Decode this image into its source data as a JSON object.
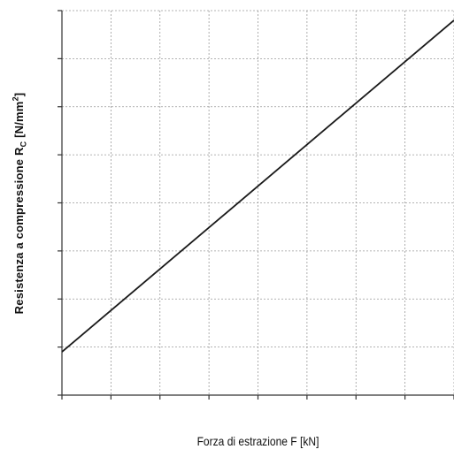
{
  "chart_data": {
    "type": "line",
    "title": "",
    "xlabel": "Forza di estrazione F [kN]",
    "ylabel": {
      "main": "Resistenza a compressione R",
      "sub": "C",
      "mid": " [N/mm",
      "sup": "2",
      "end": "]"
    },
    "grid": true,
    "xlim": [
      0,
      8
    ],
    "ylim": [
      0,
      8
    ],
    "x_divisions": 8,
    "y_divisions": 8,
    "series": [
      {
        "x": [
          0,
          8
        ],
        "y": [
          0.9,
          7.8
        ]
      }
    ],
    "colors": {
      "line": "#1a1a1a",
      "axis": "#333333",
      "grid": "#9a9a9a"
    }
  }
}
